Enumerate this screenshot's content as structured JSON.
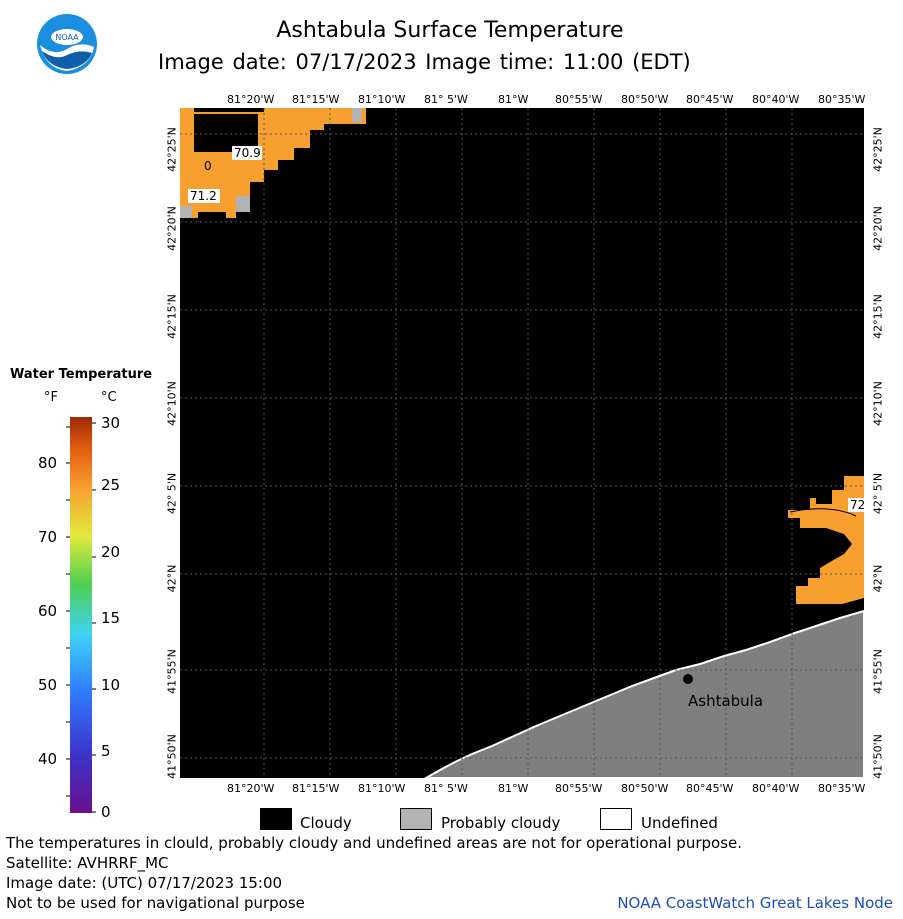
{
  "header": {
    "title": "Ashtabula Surface Temperature",
    "subtitle": "Image date: 07/17/2023     Image time: 11:00 (EDT)"
  },
  "logo": {
    "text": "NOAA"
  },
  "map": {
    "lon_labels": [
      "81°20'W",
      "81°15'W",
      "81°10'W",
      "81° 5'W",
      "81°W",
      "80°55'W",
      "80°50'W",
      "80°45'W",
      "80°40'W",
      "80°35'W"
    ],
    "lat_labels": [
      "42°25'N",
      "42°20'N",
      "42°15'N",
      "42°10'N",
      "42° 5'N",
      "42°N",
      "41°55'N",
      "41°50'N"
    ],
    "temperature_labels": [
      "70.9",
      "71.2",
      "72",
      "0"
    ],
    "place_label": "Ashtabula",
    "colors": {
      "cloud": "#000000",
      "land": "#7f7f7f",
      "water_warm": "#f7a030",
      "probably_cloudy": "#b3b3b3"
    }
  },
  "colorbar": {
    "title": "Water Temperature",
    "unit_f": "°F",
    "unit_c": "°C",
    "f_ticks": [
      "80",
      "70",
      "60",
      "50",
      "40"
    ],
    "c_ticks": [
      "30",
      "25",
      "20",
      "15",
      "10",
      "5",
      "0"
    ]
  },
  "legend": {
    "items": [
      {
        "label": "Cloudy",
        "color": "#000000"
      },
      {
        "label": "Probably cloudy",
        "color": "#b3b3b3"
      },
      {
        "label": "Undefined",
        "color": "#ffffff"
      }
    ]
  },
  "footer": {
    "note": "The temperatures in clould, probably cloudy and undefined areas are not for operational purpose.",
    "satellite": "Satellite: AVHRRF_MC",
    "utc_date": "Image date: (UTC) 07/17/2023  15:00",
    "nav_warning": "Not to be used for navigational purpose",
    "credit": "NOAA CoastWatch Great Lakes Node"
  }
}
